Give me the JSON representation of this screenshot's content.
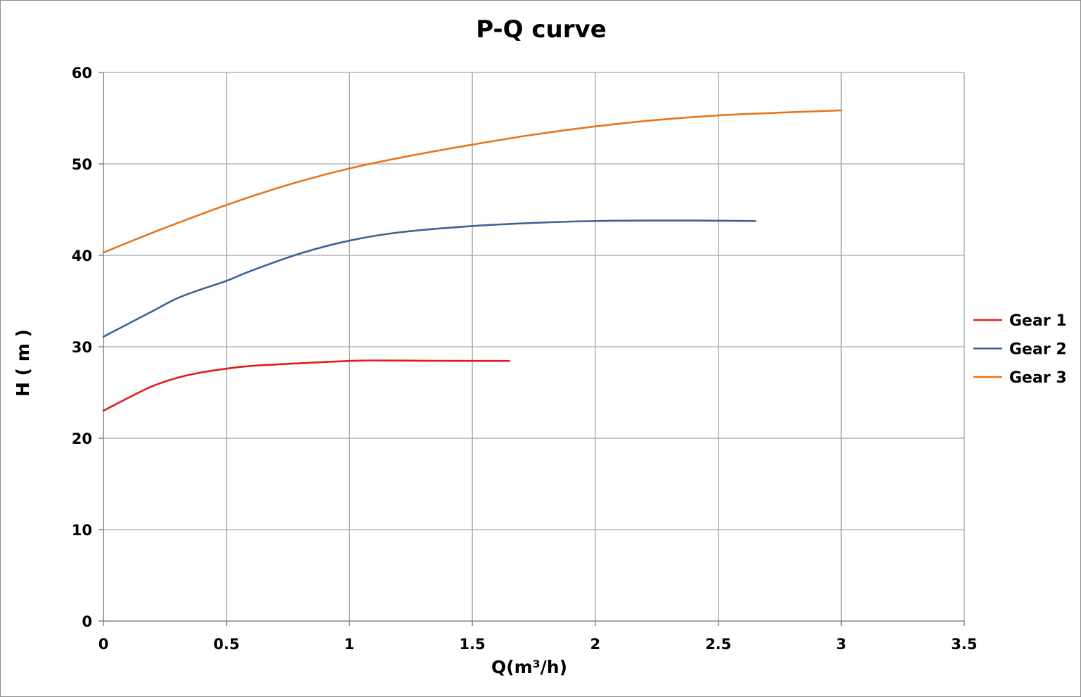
{
  "chart_data": {
    "type": "line",
    "title": "P-Q  curve",
    "xlabel": "Q(m³/h)",
    "ylabel": "H ( m )",
    "xlim": [
      0,
      3.5
    ],
    "ylim": [
      0,
      60
    ],
    "x_ticks": [
      "0",
      "0.5",
      "1",
      "1.5",
      "2",
      "2.5",
      "3",
      "3.5"
    ],
    "y_ticks": [
      "0",
      "10",
      "20",
      "30",
      "40",
      "50",
      "60"
    ],
    "grid": true,
    "legend_position": "right",
    "series": [
      {
        "name": "Gear 1",
        "color": "#e31a1c",
        "points": [
          [
            0,
            23.0
          ],
          [
            0.1,
            24.4
          ],
          [
            0.2,
            25.7
          ],
          [
            0.3,
            26.6
          ],
          [
            0.4,
            27.2
          ],
          [
            0.5,
            27.6
          ],
          [
            0.6,
            27.9
          ],
          [
            0.8,
            28.2
          ],
          [
            1.0,
            28.45
          ],
          [
            1.1,
            28.5
          ],
          [
            1.3,
            28.47
          ],
          [
            1.5,
            28.45
          ],
          [
            1.65,
            28.45
          ]
        ]
      },
      {
        "name": "Gear 2",
        "color": "#3c6391",
        "points": [
          [
            0,
            31.1
          ],
          [
            0.1,
            32.5
          ],
          [
            0.2,
            33.9
          ],
          [
            0.3,
            35.3
          ],
          [
            0.4,
            36.3
          ],
          [
            0.5,
            37.2
          ],
          [
            0.6,
            38.3
          ],
          [
            0.8,
            40.2
          ],
          [
            1.0,
            41.6
          ],
          [
            1.2,
            42.5
          ],
          [
            1.5,
            43.2
          ],
          [
            1.8,
            43.6
          ],
          [
            2.0,
            43.75
          ],
          [
            2.2,
            43.8
          ],
          [
            2.4,
            43.8
          ],
          [
            2.65,
            43.75
          ]
        ]
      },
      {
        "name": "Gear 3",
        "color": "#e8751a",
        "points": [
          [
            0,
            40.3
          ],
          [
            0.1,
            41.4
          ],
          [
            0.25,
            43.0
          ],
          [
            0.5,
            45.5
          ],
          [
            0.75,
            47.7
          ],
          [
            1.0,
            49.5
          ],
          [
            1.25,
            50.9
          ],
          [
            1.5,
            52.1
          ],
          [
            1.75,
            53.2
          ],
          [
            2.0,
            54.1
          ],
          [
            2.25,
            54.8
          ],
          [
            2.5,
            55.3
          ],
          [
            2.75,
            55.6
          ],
          [
            3.0,
            55.85
          ]
        ]
      }
    ]
  }
}
